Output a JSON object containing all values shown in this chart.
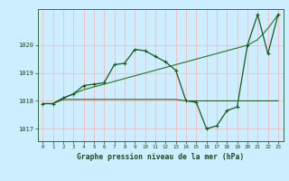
{
  "title": "Graphe pression niveau de la mer (hPa)",
  "bg_color": "#cceeff",
  "grid_color": "#ffb6b6",
  "line_color_dark": "#1a5c1a",
  "line_color_medium": "#2e7d2e",
  "text_color": "#1a4d1a",
  "ylim": [
    1016.55,
    1021.3
  ],
  "xlim": [
    -0.5,
    23.5
  ],
  "yticks": [
    1017,
    1018,
    1019,
    1020
  ],
  "xticks": [
    0,
    1,
    2,
    3,
    4,
    5,
    6,
    7,
    8,
    9,
    10,
    11,
    12,
    13,
    14,
    15,
    16,
    17,
    18,
    19,
    20,
    21,
    22,
    23
  ],
  "series_zigzag_x": [
    0,
    1,
    2,
    3,
    4,
    5,
    6,
    7,
    8,
    9,
    10,
    11,
    12,
    13,
    14,
    15,
    16,
    17,
    18,
    19,
    20,
    21,
    22,
    23
  ],
  "series_zigzag_y": [
    1017.9,
    1017.9,
    1018.1,
    1018.25,
    1018.55,
    1018.6,
    1018.65,
    1019.3,
    1019.35,
    1019.85,
    1019.8,
    1019.6,
    1019.4,
    1019.1,
    1018.0,
    1017.95,
    1017.0,
    1017.1,
    1017.65,
    1017.78,
    1020.0,
    1021.1,
    1019.7,
    1021.1
  ],
  "series_trend_x": [
    0,
    1,
    2,
    3,
    4,
    5,
    6,
    7,
    8,
    9,
    10,
    11,
    12,
    13,
    14,
    15,
    16,
    17,
    18,
    19,
    20,
    21,
    22,
    23
  ],
  "series_trend_y": [
    1017.9,
    1017.9,
    1018.1,
    1018.25,
    1018.4,
    1018.5,
    1018.6,
    1018.7,
    1018.8,
    1018.9,
    1019.0,
    1019.1,
    1019.2,
    1019.3,
    1019.4,
    1019.5,
    1019.6,
    1019.7,
    1019.8,
    1019.9,
    1020.0,
    1020.2,
    1020.6,
    1021.1
  ],
  "series_flat_x": [
    0,
    1,
    2,
    3,
    4,
    5,
    6,
    7,
    8,
    9,
    10,
    11,
    12,
    13,
    14,
    15,
    16,
    17,
    18,
    19,
    20,
    21,
    22,
    23
  ],
  "series_flat_y": [
    1017.9,
    1017.9,
    1018.05,
    1018.05,
    1018.05,
    1018.05,
    1018.05,
    1018.05,
    1018.05,
    1018.05,
    1018.05,
    1018.05,
    1018.05,
    1018.05,
    1018.0,
    1018.0,
    1018.0,
    1018.0,
    1018.0,
    1018.0,
    1018.0,
    1018.0,
    1018.0,
    1018.0
  ]
}
